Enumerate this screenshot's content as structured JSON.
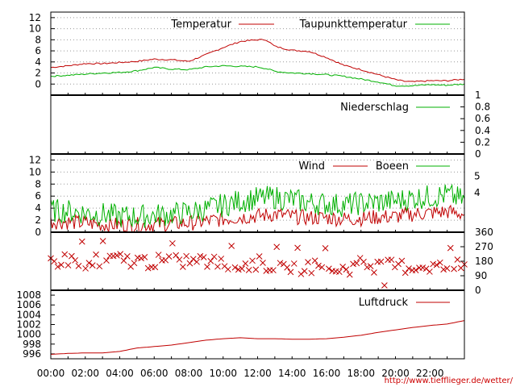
{
  "credit": "http://www.tiefflieger.de/wetter/",
  "x_ticks": [
    "00:00",
    "02:00",
    "04:00",
    "06:00",
    "08:00",
    "10:00",
    "12:00",
    "14:00",
    "16:00",
    "18:00",
    "20:00",
    "22:00"
  ],
  "colors": {
    "red": "#c00000",
    "green": "#00b000",
    "grid": "#888888"
  },
  "chart_data": [
    {
      "type": "line",
      "ylim": [
        -2,
        13
      ],
      "y_ticks": [
        "0",
        "2",
        "4",
        "6",
        "8",
        "10",
        "12"
      ],
      "y_tick_values": [
        0,
        2,
        4,
        6,
        8,
        10,
        12
      ],
      "grid": true,
      "legend_placement": "top-right",
      "series": [
        {
          "name": "Temperatur",
          "color": "#c00000",
          "x": [
            0,
            1,
            2,
            3,
            4,
            5,
            6,
            7,
            8,
            9,
            10,
            11,
            12,
            12.5,
            13,
            14,
            15,
            16,
            17,
            18,
            19,
            20,
            20.5,
            21,
            22,
            23,
            24
          ],
          "values": [
            3,
            3.3,
            3.7,
            3.7,
            3.9,
            4.1,
            4.5,
            4.4,
            4.1,
            5.3,
            6.6,
            7.7,
            8,
            8,
            6.8,
            6.1,
            5.9,
            4.8,
            3.4,
            2.6,
            1.7,
            0.8,
            0.5,
            0.4,
            0.6,
            0.6,
            0.9
          ]
        },
        {
          "name": "Taupunkttemperatur",
          "color": "#00b000",
          "x": [
            0,
            1,
            2,
            3,
            4,
            5,
            6,
            7,
            8,
            9,
            10,
            11,
            12,
            12.5,
            13,
            14,
            15,
            16,
            17,
            18,
            19,
            20,
            20.5,
            21,
            22,
            23,
            24
          ],
          "values": [
            1.4,
            1.6,
            1.8,
            2.0,
            2.1,
            2.4,
            3.0,
            2.7,
            2.6,
            3.1,
            3.3,
            3.2,
            3.1,
            2.8,
            2.3,
            2.0,
            1.9,
            1.7,
            1.4,
            0.9,
            0.4,
            -0.3,
            -0.3,
            -0.3,
            -0.1,
            -0.2,
            0.0
          ]
        }
      ]
    },
    {
      "type": "line",
      "ylim": [
        0,
        1
      ],
      "y_ticks": [
        "0",
        "0.2",
        "0.4",
        "0.6",
        "0.8",
        "1"
      ],
      "y_tick_values": [
        0,
        0.2,
        0.4,
        0.6,
        0.8,
        1
      ],
      "grid": false,
      "series": [
        {
          "name": "Niederschlag",
          "color": "#00b000",
          "x": [
            0,
            24
          ],
          "values": [
            0,
            0
          ]
        }
      ]
    },
    {
      "type": "line",
      "ylim": [
        0,
        13
      ],
      "y_ticks": [
        "0",
        "2",
        "4",
        "6",
        "8",
        "10",
        "12"
      ],
      "y_tick_values": [
        0,
        2,
        4,
        6,
        8,
        10,
        12
      ],
      "right_ticks": [
        "4",
        "5"
      ],
      "right_tick_values": [
        6.6,
        9.3
      ],
      "grid": true,
      "series": [
        {
          "name": "Wind",
          "color": "#c00000",
          "x": [
            0,
            1,
            2,
            3,
            4,
            5,
            6,
            7,
            8,
            9,
            10,
            11,
            12,
            13,
            14,
            15,
            16,
            17,
            18,
            19,
            20,
            21,
            22,
            23,
            24
          ],
          "values": [
            1.8,
            1.7,
            1.5,
            1.3,
            1.2,
            1.2,
            1.3,
            1.4,
            1.5,
            1.8,
            2.2,
            2.5,
            2.7,
            3.0,
            2.6,
            2.4,
            2.4,
            2.2,
            2.3,
            2.5,
            2.6,
            3.0,
            3.2,
            3.4,
            3.0
          ]
        },
        {
          "name": "Boeen",
          "color": "#00b000",
          "x": [
            0,
            1,
            2,
            3,
            4,
            5,
            6,
            7,
            8,
            9,
            10,
            11,
            12,
            13,
            14,
            15,
            16,
            17,
            18,
            19,
            20,
            21,
            22,
            23,
            24
          ],
          "values": [
            3.6,
            3.5,
            3.2,
            3.0,
            2.6,
            2.6,
            2.8,
            3.0,
            3.3,
            3.8,
            4.5,
            5.2,
            5.6,
            5.8,
            5.4,
            4.9,
            4.7,
            4.5,
            4.8,
            5.0,
            5.2,
            5.7,
            5.9,
            6.2,
            5.3
          ]
        }
      ]
    },
    {
      "type": "scatter",
      "ylim": [
        0,
        360
      ],
      "y_ticks": [
        "0",
        "90",
        "180",
        "270",
        "360"
      ],
      "y_tick_values": [
        0,
        90,
        180,
        270,
        360
      ],
      "grid": false,
      "series": [
        {
          "name": "",
          "color": "#c00000",
          "x": [
            0,
            1,
            2,
            3,
            4,
            5,
            6,
            7,
            8,
            9,
            10,
            11,
            12,
            13,
            14,
            15,
            16,
            17,
            18,
            19,
            20,
            21,
            22,
            23,
            24
          ],
          "values": [
            180,
            190,
            180,
            185,
            190,
            180,
            178,
            170,
            185,
            180,
            160,
            150,
            170,
            150,
            140,
            150,
            140,
            130,
            160,
            150,
            150,
            145,
            150,
            140,
            150
          ]
        }
      ]
    },
    {
      "type": "line",
      "ylim": [
        995,
        1009
      ],
      "y_ticks": [
        "996",
        "998",
        "1000",
        "1002",
        "1004",
        "1006",
        "1008"
      ],
      "y_tick_values": [
        996,
        998,
        1000,
        1002,
        1004,
        1006,
        1008
      ],
      "grid": false,
      "series": [
        {
          "name": "Luftdruck",
          "color": "#c00000",
          "x": [
            0,
            1,
            2,
            3,
            4,
            5,
            6,
            7,
            8,
            9,
            10,
            11,
            12,
            13,
            14,
            15,
            16,
            17,
            18,
            19,
            20,
            21,
            22,
            23,
            24
          ],
          "values": [
            995.9,
            996.1,
            996.2,
            996.2,
            996.5,
            997.2,
            997.5,
            997.8,
            998.3,
            998.8,
            999.1,
            999.3,
            999.1,
            999.1,
            999.0,
            999.0,
            999.1,
            999.4,
            999.8,
            1000.4,
            1000.9,
            1001.4,
            1001.8,
            1002.1,
            1002.8
          ]
        }
      ]
    }
  ]
}
